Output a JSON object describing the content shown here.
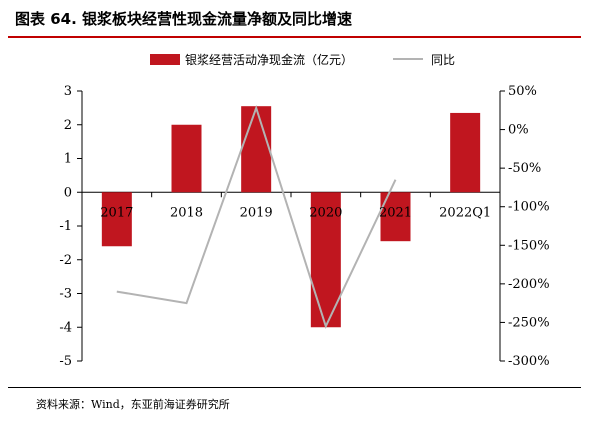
{
  "figure": {
    "title": "图表 64. 银浆板块经营性现金流量净额及同比增速",
    "source": "资料来源：Wind，东亚前海证券研究所"
  },
  "colors": {
    "bar": "#c0161f",
    "line": "#b3b3b3",
    "title_rule": "#c00000"
  },
  "chart_data": {
    "type": "bar",
    "categories": [
      "2017",
      "2018",
      "2019",
      "2020",
      "2021",
      "2022Q1"
    ],
    "series": [
      {
        "name": "银浆经营活动净现金流（亿元）",
        "type": "bar",
        "axis": "left",
        "values": [
          -1.6,
          2.0,
          2.55,
          -4.0,
          -1.45,
          2.35
        ]
      },
      {
        "name": "同比",
        "type": "line",
        "axis": "right",
        "values": [
          -210,
          -225,
          28,
          -255,
          -65,
          null
        ]
      }
    ],
    "y_left": {
      "min": -5,
      "max": 3,
      "ticks": [
        "3",
        "2",
        "1",
        "0",
        "-1",
        "-2",
        "-3",
        "-4",
        "-5"
      ]
    },
    "y_right": {
      "min": -300,
      "max": 50,
      "ticks": [
        "50%",
        "0%",
        "-50%",
        "-100%",
        "-150%",
        "-200%",
        "-250%",
        "-300%"
      ]
    },
    "legend_position": "top-center",
    "grid": false
  }
}
